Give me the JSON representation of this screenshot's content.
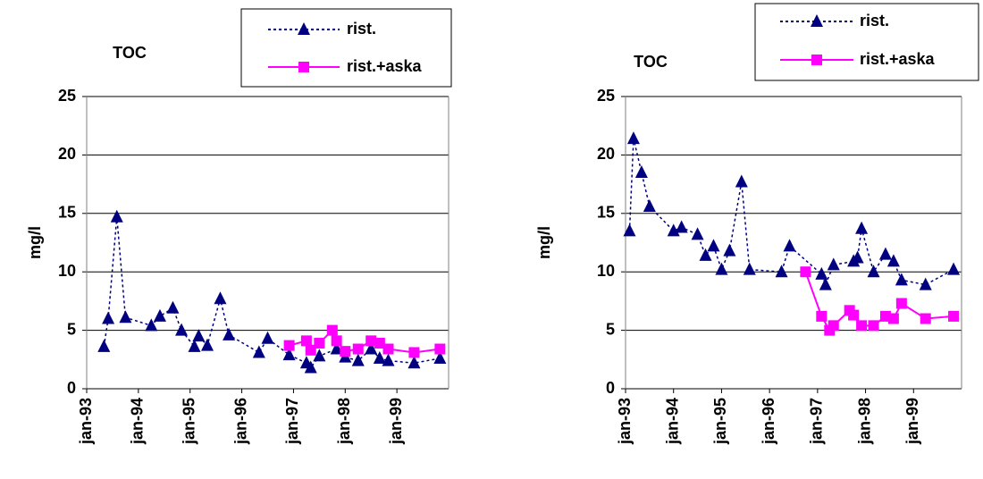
{
  "chart_data": [
    {
      "type": "line",
      "title": "TOC",
      "ylabel": "mg/l",
      "ylim": [
        0,
        25
      ],
      "yticks": [
        0,
        5,
        10,
        15,
        20,
        25
      ],
      "grid": true,
      "xlim": [
        "1993-01",
        "2000-01"
      ],
      "xticks": [
        {
          "value": "1993-01",
          "label": "jan-93"
        },
        {
          "value": "1994-01",
          "label": "jan-94"
        },
        {
          "value": "1995-01",
          "label": "jan-95"
        },
        {
          "value": "1996-01",
          "label": "jan-96"
        },
        {
          "value": "1997-01",
          "label": "jan-97"
        },
        {
          "value": "1998-01",
          "label": "jan-98"
        },
        {
          "value": "1999-01",
          "label": "jan-99"
        }
      ],
      "legend": "top-right",
      "series": [
        {
          "name": "rist.",
          "color": "#000080",
          "line_style": "dotted",
          "marker": "triangle",
          "x": [
            "1993-05",
            "1993-06",
            "1993-08",
            "1993-10",
            "1994-04",
            "1994-06",
            "1994-09",
            "1994-11",
            "1995-02",
            "1995-03",
            "1995-05",
            "1995-08",
            "1995-10",
            "1996-05",
            "1996-07",
            "1996-12",
            "1997-04",
            "1997-05",
            "1997-07",
            "1997-11",
            "1998-01",
            "1998-04",
            "1998-07",
            "1998-09",
            "1998-11",
            "1999-05",
            "1999-11"
          ],
          "values": [
            3.6,
            6,
            14.7,
            6.1,
            5.4,
            6.2,
            6.9,
            5,
            3.6,
            4.5,
            3.7,
            7.7,
            4.6,
            3.1,
            4.3,
            2.9,
            2.2,
            1.8,
            2.8,
            3.4,
            2.7,
            2.4,
            3.4,
            2.6,
            2.4,
            2.2,
            2.6
          ]
        },
        {
          "name": "rist.+aska",
          "color": "#ff00ff",
          "line_style": "solid",
          "marker": "square",
          "x": [
            "1996-12",
            "1997-04",
            "1997-05",
            "1997-07",
            "1997-10",
            "1997-11",
            "1998-01",
            "1998-04",
            "1998-07",
            "1998-09",
            "1998-11",
            "1999-05",
            "1999-11"
          ],
          "values": [
            3.7,
            4.1,
            3.3,
            3.9,
            5,
            4.1,
            3.2,
            3.4,
            4.1,
            3.9,
            3.4,
            3.1,
            3.4
          ]
        }
      ]
    },
    {
      "type": "line",
      "title": "TOC",
      "ylabel": "mg/l",
      "ylim": [
        0,
        25
      ],
      "yticks": [
        0,
        5,
        10,
        15,
        20,
        25
      ],
      "grid": true,
      "xlim": [
        "1993-01",
        "2000-01"
      ],
      "xticks": [
        {
          "value": "1993-01",
          "label": "jan-93"
        },
        {
          "value": "1994-01",
          "label": "jan-94"
        },
        {
          "value": "1995-01",
          "label": "jan-95"
        },
        {
          "value": "1996-01",
          "label": "jan-96"
        },
        {
          "value": "1997-01",
          "label": "jan-97"
        },
        {
          "value": "1998-01",
          "label": "jan-98"
        },
        {
          "value": "1999-01",
          "label": "jan-99"
        }
      ],
      "legend": "top-right",
      "series": [
        {
          "name": "rist.",
          "color": "#000080",
          "line_style": "dotted",
          "marker": "triangle",
          "x": [
            "1993-02",
            "1993-03",
            "1993-05",
            "1993-07",
            "1994-01",
            "1994-03",
            "1994-07",
            "1994-09",
            "1994-11",
            "1995-01",
            "1995-03",
            "1995-06",
            "1995-08",
            "1996-04",
            "1996-06",
            "1997-02",
            "1997-03",
            "1997-05",
            "1997-10",
            "1997-11",
            "1997-12",
            "1998-03",
            "1998-06",
            "1998-08",
            "1998-10",
            "1999-04",
            "1999-11"
          ],
          "values": [
            13.5,
            21.4,
            18.5,
            15.6,
            13.5,
            13.8,
            13.2,
            11.4,
            12.2,
            10.2,
            11.8,
            17.7,
            10.2,
            10,
            12.2,
            9.8,
            8.9,
            10.6,
            10.9,
            11.2,
            13.7,
            10,
            11.5,
            10.9,
            9.3,
            8.9,
            10.2
          ]
        },
        {
          "name": "rist.+aska",
          "color": "#ff00ff",
          "line_style": "solid",
          "marker": "square",
          "x": [
            "1996-10",
            "1997-02",
            "1997-04",
            "1997-05",
            "1997-09",
            "1997-10",
            "1997-12",
            "1998-03",
            "1998-06",
            "1998-08",
            "1998-10",
            "1999-04",
            "1999-11"
          ],
          "values": [
            10,
            6.2,
            5,
            5.4,
            6.7,
            6.3,
            5.4,
            5.4,
            6.2,
            6,
            7.3,
            6,
            6.2
          ]
        }
      ]
    }
  ]
}
